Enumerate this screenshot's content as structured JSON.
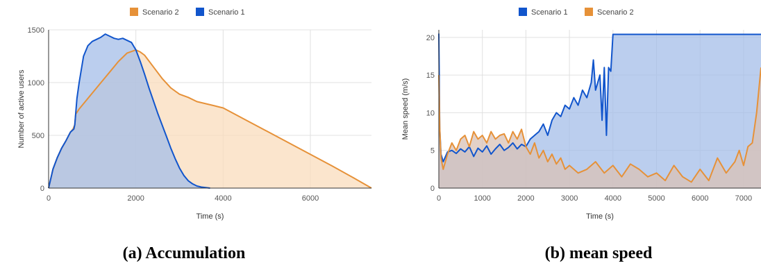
{
  "chart_data": [
    {
      "type": "area",
      "caption": "(a) Accumulation",
      "xlabel": "Time (s)",
      "ylabel": "Number of active users",
      "xlim": [
        0,
        7400
      ],
      "ylim": [
        0,
        1500
      ],
      "xticks": [
        0,
        2000,
        4000,
        6000
      ],
      "yticks": [
        0,
        500,
        1000,
        1500
      ],
      "grid": true,
      "legend_position": "top",
      "legend": [
        "Scenario 2",
        "Scenario 1"
      ],
      "series": [
        {
          "name": "Scenario 2",
          "color": "#e69138",
          "fill": "#f9dcbc",
          "x": [
            0,
            100,
            200,
            300,
            400,
            500,
            560,
            600,
            620,
            700,
            800,
            1000,
            1200,
            1400,
            1600,
            1800,
            2000,
            2100,
            2200,
            2400,
            2600,
            2800,
            3000,
            3200,
            3400,
            3600,
            3800,
            3900,
            4000,
            4500,
            5000,
            5500,
            6000,
            6500,
            7000,
            7400
          ],
          "values": [
            0,
            180,
            290,
            380,
            450,
            530,
            560,
            600,
            700,
            750,
            800,
            900,
            1000,
            1100,
            1200,
            1280,
            1310,
            1290,
            1260,
            1150,
            1040,
            950,
            890,
            860,
            820,
            800,
            780,
            770,
            760,
            650,
            540,
            430,
            320,
            210,
            95,
            0
          ]
        },
        {
          "name": "Scenario 1",
          "color": "#1155cc",
          "fill": "#a4bde8",
          "x": [
            0,
            100,
            200,
            300,
            400,
            500,
            580,
            600,
            650,
            700,
            800,
            900,
            1000,
            1100,
            1200,
            1300,
            1400,
            1500,
            1600,
            1700,
            1800,
            1900,
            2000,
            2100,
            2200,
            2300,
            2400,
            2500,
            2600,
            2700,
            2800,
            2900,
            3000,
            3100,
            3200,
            3300,
            3400,
            3500,
            3600,
            3700
          ],
          "values": [
            0,
            180,
            290,
            380,
            450,
            530,
            560,
            600,
            850,
            1000,
            1250,
            1350,
            1390,
            1410,
            1430,
            1460,
            1440,
            1420,
            1410,
            1420,
            1400,
            1380,
            1310,
            1200,
            1080,
            950,
            830,
            710,
            600,
            490,
            380,
            280,
            190,
            120,
            70,
            40,
            20,
            10,
            5,
            0
          ]
        }
      ]
    },
    {
      "type": "area",
      "caption": "(b) mean speed",
      "xlabel": "Time (s)",
      "ylabel": "Mean speed (m/s)",
      "xlim": [
        0,
        7400
      ],
      "ylim": [
        0,
        21
      ],
      "xticks": [
        0,
        1000,
        2000,
        3000,
        4000,
        5000,
        6000,
        7000
      ],
      "yticks": [
        0,
        5,
        10,
        15,
        20
      ],
      "grid": true,
      "legend_position": "top",
      "legend": [
        "Scenario 1",
        "Scenario 2"
      ],
      "series": [
        {
          "name": "Scenario 1",
          "color": "#1155cc",
          "fill": "#a4bde8",
          "x": [
            0,
            20,
            50,
            100,
            200,
            300,
            400,
            500,
            600,
            700,
            800,
            900,
            1000,
            1100,
            1200,
            1300,
            1400,
            1500,
            1600,
            1700,
            1800,
            1900,
            2000,
            2100,
            2200,
            2300,
            2400,
            2500,
            2600,
            2700,
            2800,
            2900,
            3000,
            3100,
            3200,
            3300,
            3400,
            3500,
            3550,
            3600,
            3700,
            3750,
            3800,
            3850,
            3900,
            3950,
            3960,
            4000,
            5000,
            6000,
            7000,
            7400
          ],
          "values": [
            20.5,
            8,
            4.5,
            3.5,
            4.8,
            5,
            4.6,
            5.2,
            4.8,
            5.5,
            4.2,
            5.3,
            4.8,
            5.6,
            4.5,
            5.2,
            5.8,
            5,
            5.4,
            6,
            5.2,
            5.8,
            5.5,
            6.5,
            7,
            7.5,
            8.5,
            7,
            9,
            10,
            9.5,
            11,
            10.5,
            12,
            11,
            13,
            12,
            14,
            17,
            13,
            15,
            9,
            16,
            7,
            16,
            15.5,
            16.5,
            20.4,
            20.4,
            20.4,
            20.4,
            20.4
          ]
        },
        {
          "name": "Scenario 2",
          "color": "#e69138",
          "fill": "#d9c1b6",
          "x": [
            0,
            20,
            50,
            100,
            200,
            300,
            400,
            500,
            600,
            700,
            800,
            900,
            1000,
            1100,
            1200,
            1300,
            1400,
            1500,
            1600,
            1700,
            1800,
            1900,
            2000,
            2100,
            2200,
            2300,
            2400,
            2500,
            2600,
            2700,
            2800,
            2900,
            3000,
            3200,
            3400,
            3600,
            3800,
            4000,
            4200,
            4400,
            4600,
            4800,
            5000,
            5200,
            5400,
            5600,
            5800,
            6000,
            6200,
            6400,
            6600,
            6800,
            6900,
            7000,
            7100,
            7200,
            7300,
            7400
          ],
          "values": [
            15,
            8,
            4,
            2.5,
            4.5,
            6,
            5,
            6.5,
            7,
            5.5,
            7.5,
            6.5,
            7,
            6,
            7.5,
            6.5,
            7,
            7.2,
            6,
            7.5,
            6.5,
            7.8,
            5.5,
            4.5,
            6,
            4,
            5,
            3.5,
            4.5,
            3.2,
            4,
            2.5,
            3,
            2,
            2.5,
            3.5,
            2,
            3,
            1.5,
            3.2,
            2.5,
            1.5,
            2,
            1,
            3,
            1.5,
            0.8,
            2.5,
            1,
            4,
            2,
            3.5,
            5,
            3,
            5.5,
            6,
            10,
            16
          ]
        }
      ]
    }
  ]
}
